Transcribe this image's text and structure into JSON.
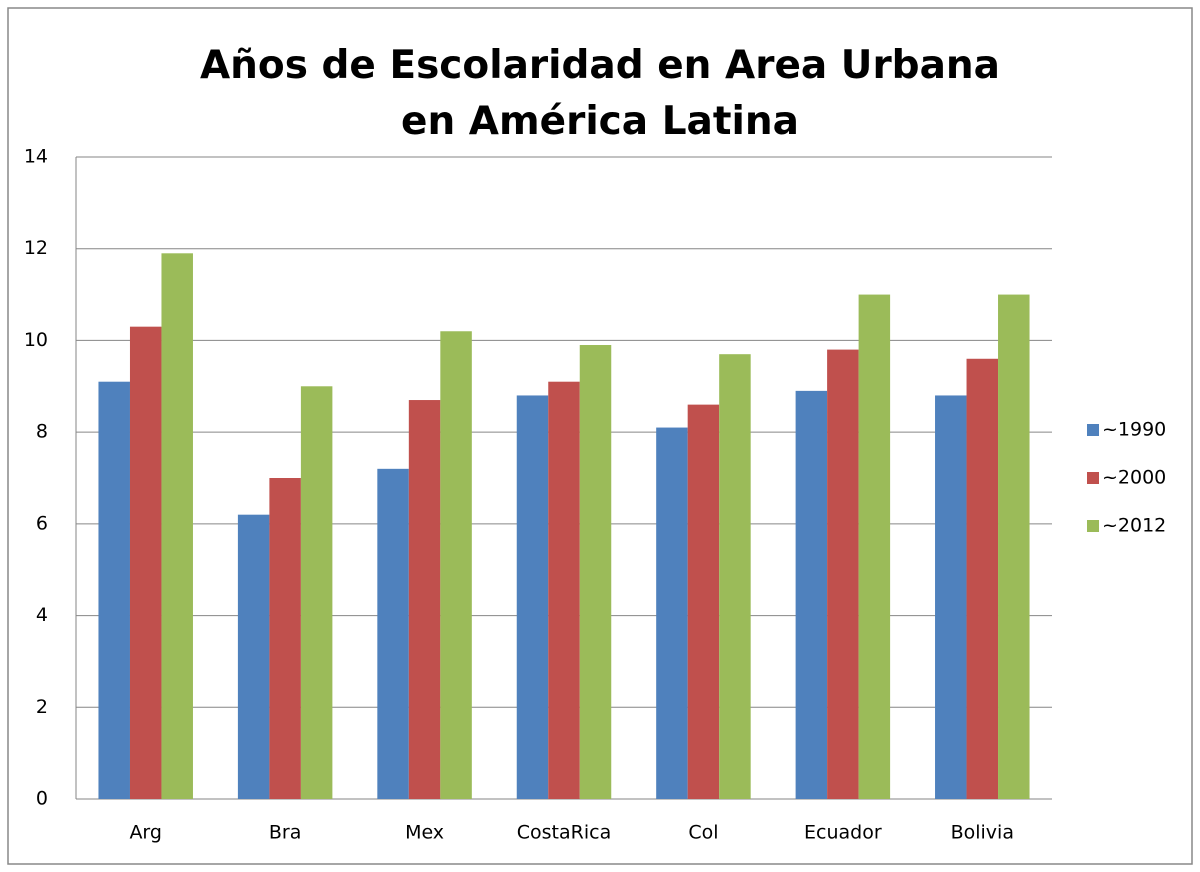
{
  "chart_data": {
    "type": "bar",
    "title": "Años de Escolaridad en Area Urbana en América Latina",
    "categories": [
      "Arg",
      "Bra",
      "Mex",
      "CostaRica",
      "Col",
      "Ecuador",
      "Bolivia"
    ],
    "series": [
      {
        "name": "~1990",
        "color": "#4f81bd",
        "values": [
          9.1,
          6.2,
          7.2,
          8.8,
          8.1,
          8.9,
          8.8
        ]
      },
      {
        "name": "~2000",
        "color": "#c0504d",
        "values": [
          10.3,
          7.0,
          8.7,
          9.1,
          8.6,
          9.8,
          9.6
        ]
      },
      {
        "name": "~2012",
        "color": "#9bbb59",
        "values": [
          11.9,
          9.0,
          10.2,
          9.9,
          9.7,
          11.0,
          11.0
        ]
      }
    ],
    "ylim": [
      0,
      14
    ],
    "yticks": [
      0,
      2,
      4,
      6,
      8,
      10,
      12,
      14
    ],
    "grid": true,
    "legend": "right"
  }
}
